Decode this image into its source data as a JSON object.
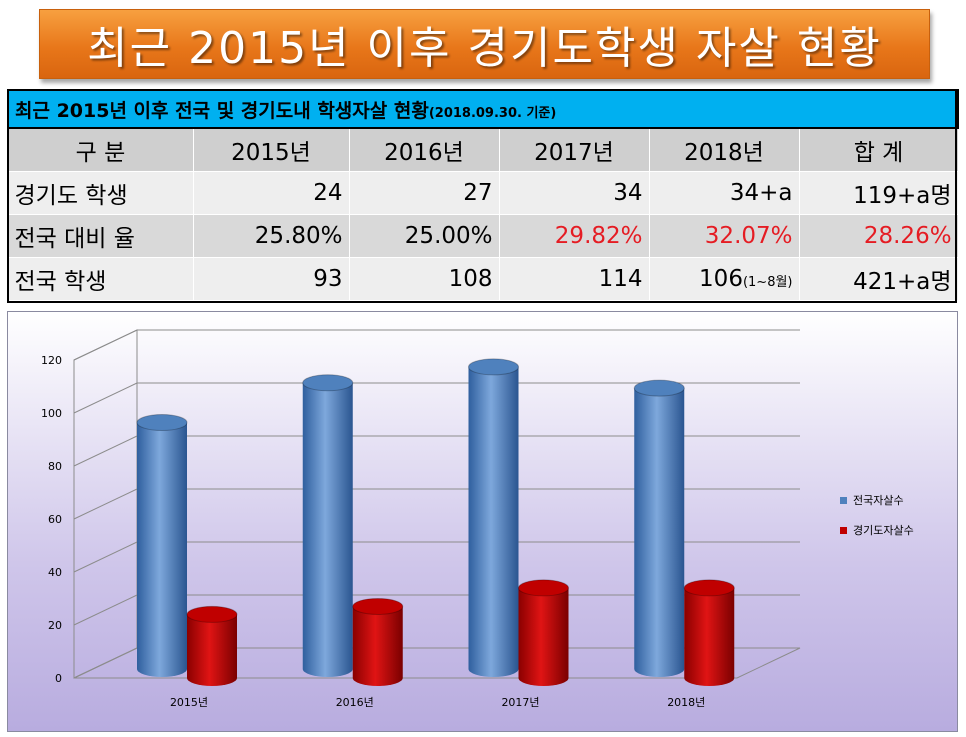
{
  "banner": {
    "title": "최근 2015년 이후 경기도학생 자살 현황"
  },
  "table": {
    "caption": "최근 2015년 이후 전국 및 경기도내 학생자살 현황",
    "caption_sub": "(2018.09.30. 기준)",
    "header": [
      "구 분",
      "2015년",
      "2016년",
      "2017년",
      "2018년",
      "합 계"
    ],
    "rows": [
      [
        "경기도 학생",
        "24",
        "27",
        "34",
        "34+a",
        "119+a명"
      ],
      [
        "전국 대비 율",
        "25.80%",
        "25.00%",
        "29.82%",
        "32.07%",
        "28.26%"
      ],
      [
        "전국 학생",
        "93",
        "108",
        "114",
        "106",
        "421+a명"
      ]
    ],
    "note_2018": "(1~8월)",
    "red_color": "#e51c23"
  },
  "chart_data": {
    "type": "bar",
    "categories": [
      "2015년",
      "2016년",
      "2017년",
      "2018년"
    ],
    "series": [
      {
        "name": "전국자살수",
        "values": [
          93,
          108,
          114,
          106
        ],
        "color": "#4f81bd"
      },
      {
        "name": "경기도자살수",
        "values": [
          24,
          27,
          34,
          34
        ],
        "color": "#c00000"
      }
    ],
    "yticks": [
      "0",
      "20",
      "40",
      "60",
      "80",
      "100",
      "120"
    ],
    "ylim": [
      0,
      120
    ],
    "grid": true,
    "legend": "right"
  }
}
